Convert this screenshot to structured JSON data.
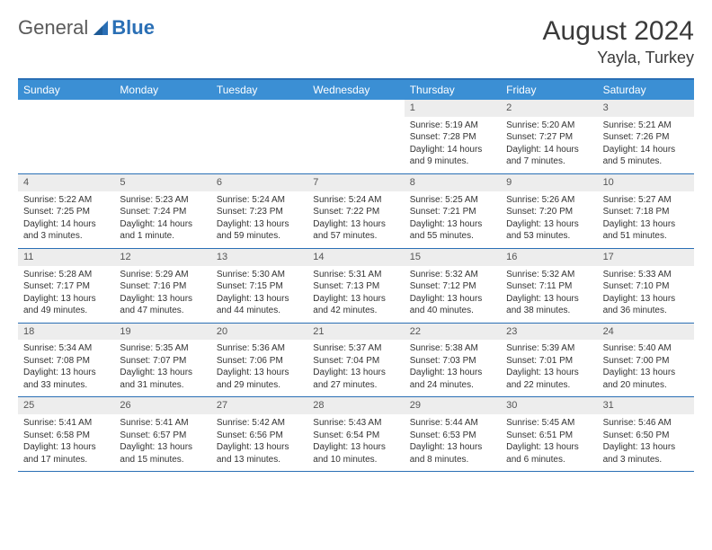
{
  "brand": {
    "part1": "General",
    "part2": "Blue"
  },
  "title": "August 2024",
  "location": "Yayla, Turkey",
  "colors": {
    "header_bg": "#3b8fd4",
    "header_border": "#2a6fb5",
    "daynum_bg": "#ededed",
    "text": "#333333"
  },
  "dayNames": [
    "Sunday",
    "Monday",
    "Tuesday",
    "Wednesday",
    "Thursday",
    "Friday",
    "Saturday"
  ],
  "weeks": [
    [
      {
        "num": "",
        "sunrise": "",
        "sunset": "",
        "daylight": ""
      },
      {
        "num": "",
        "sunrise": "",
        "sunset": "",
        "daylight": ""
      },
      {
        "num": "",
        "sunrise": "",
        "sunset": "",
        "daylight": ""
      },
      {
        "num": "",
        "sunrise": "",
        "sunset": "",
        "daylight": ""
      },
      {
        "num": "1",
        "sunrise": "Sunrise: 5:19 AM",
        "sunset": "Sunset: 7:28 PM",
        "daylight": "Daylight: 14 hours and 9 minutes."
      },
      {
        "num": "2",
        "sunrise": "Sunrise: 5:20 AM",
        "sunset": "Sunset: 7:27 PM",
        "daylight": "Daylight: 14 hours and 7 minutes."
      },
      {
        "num": "3",
        "sunrise": "Sunrise: 5:21 AM",
        "sunset": "Sunset: 7:26 PM",
        "daylight": "Daylight: 14 hours and 5 minutes."
      }
    ],
    [
      {
        "num": "4",
        "sunrise": "Sunrise: 5:22 AM",
        "sunset": "Sunset: 7:25 PM",
        "daylight": "Daylight: 14 hours and 3 minutes."
      },
      {
        "num": "5",
        "sunrise": "Sunrise: 5:23 AM",
        "sunset": "Sunset: 7:24 PM",
        "daylight": "Daylight: 14 hours and 1 minute."
      },
      {
        "num": "6",
        "sunrise": "Sunrise: 5:24 AM",
        "sunset": "Sunset: 7:23 PM",
        "daylight": "Daylight: 13 hours and 59 minutes."
      },
      {
        "num": "7",
        "sunrise": "Sunrise: 5:24 AM",
        "sunset": "Sunset: 7:22 PM",
        "daylight": "Daylight: 13 hours and 57 minutes."
      },
      {
        "num": "8",
        "sunrise": "Sunrise: 5:25 AM",
        "sunset": "Sunset: 7:21 PM",
        "daylight": "Daylight: 13 hours and 55 minutes."
      },
      {
        "num": "9",
        "sunrise": "Sunrise: 5:26 AM",
        "sunset": "Sunset: 7:20 PM",
        "daylight": "Daylight: 13 hours and 53 minutes."
      },
      {
        "num": "10",
        "sunrise": "Sunrise: 5:27 AM",
        "sunset": "Sunset: 7:18 PM",
        "daylight": "Daylight: 13 hours and 51 minutes."
      }
    ],
    [
      {
        "num": "11",
        "sunrise": "Sunrise: 5:28 AM",
        "sunset": "Sunset: 7:17 PM",
        "daylight": "Daylight: 13 hours and 49 minutes."
      },
      {
        "num": "12",
        "sunrise": "Sunrise: 5:29 AM",
        "sunset": "Sunset: 7:16 PM",
        "daylight": "Daylight: 13 hours and 47 minutes."
      },
      {
        "num": "13",
        "sunrise": "Sunrise: 5:30 AM",
        "sunset": "Sunset: 7:15 PM",
        "daylight": "Daylight: 13 hours and 44 minutes."
      },
      {
        "num": "14",
        "sunrise": "Sunrise: 5:31 AM",
        "sunset": "Sunset: 7:13 PM",
        "daylight": "Daylight: 13 hours and 42 minutes."
      },
      {
        "num": "15",
        "sunrise": "Sunrise: 5:32 AM",
        "sunset": "Sunset: 7:12 PM",
        "daylight": "Daylight: 13 hours and 40 minutes."
      },
      {
        "num": "16",
        "sunrise": "Sunrise: 5:32 AM",
        "sunset": "Sunset: 7:11 PM",
        "daylight": "Daylight: 13 hours and 38 minutes."
      },
      {
        "num": "17",
        "sunrise": "Sunrise: 5:33 AM",
        "sunset": "Sunset: 7:10 PM",
        "daylight": "Daylight: 13 hours and 36 minutes."
      }
    ],
    [
      {
        "num": "18",
        "sunrise": "Sunrise: 5:34 AM",
        "sunset": "Sunset: 7:08 PM",
        "daylight": "Daylight: 13 hours and 33 minutes."
      },
      {
        "num": "19",
        "sunrise": "Sunrise: 5:35 AM",
        "sunset": "Sunset: 7:07 PM",
        "daylight": "Daylight: 13 hours and 31 minutes."
      },
      {
        "num": "20",
        "sunrise": "Sunrise: 5:36 AM",
        "sunset": "Sunset: 7:06 PM",
        "daylight": "Daylight: 13 hours and 29 minutes."
      },
      {
        "num": "21",
        "sunrise": "Sunrise: 5:37 AM",
        "sunset": "Sunset: 7:04 PM",
        "daylight": "Daylight: 13 hours and 27 minutes."
      },
      {
        "num": "22",
        "sunrise": "Sunrise: 5:38 AM",
        "sunset": "Sunset: 7:03 PM",
        "daylight": "Daylight: 13 hours and 24 minutes."
      },
      {
        "num": "23",
        "sunrise": "Sunrise: 5:39 AM",
        "sunset": "Sunset: 7:01 PM",
        "daylight": "Daylight: 13 hours and 22 minutes."
      },
      {
        "num": "24",
        "sunrise": "Sunrise: 5:40 AM",
        "sunset": "Sunset: 7:00 PM",
        "daylight": "Daylight: 13 hours and 20 minutes."
      }
    ],
    [
      {
        "num": "25",
        "sunrise": "Sunrise: 5:41 AM",
        "sunset": "Sunset: 6:58 PM",
        "daylight": "Daylight: 13 hours and 17 minutes."
      },
      {
        "num": "26",
        "sunrise": "Sunrise: 5:41 AM",
        "sunset": "Sunset: 6:57 PM",
        "daylight": "Daylight: 13 hours and 15 minutes."
      },
      {
        "num": "27",
        "sunrise": "Sunrise: 5:42 AM",
        "sunset": "Sunset: 6:56 PM",
        "daylight": "Daylight: 13 hours and 13 minutes."
      },
      {
        "num": "28",
        "sunrise": "Sunrise: 5:43 AM",
        "sunset": "Sunset: 6:54 PM",
        "daylight": "Daylight: 13 hours and 10 minutes."
      },
      {
        "num": "29",
        "sunrise": "Sunrise: 5:44 AM",
        "sunset": "Sunset: 6:53 PM",
        "daylight": "Daylight: 13 hours and 8 minutes."
      },
      {
        "num": "30",
        "sunrise": "Sunrise: 5:45 AM",
        "sunset": "Sunset: 6:51 PM",
        "daylight": "Daylight: 13 hours and 6 minutes."
      },
      {
        "num": "31",
        "sunrise": "Sunrise: 5:46 AM",
        "sunset": "Sunset: 6:50 PM",
        "daylight": "Daylight: 13 hours and 3 minutes."
      }
    ]
  ]
}
